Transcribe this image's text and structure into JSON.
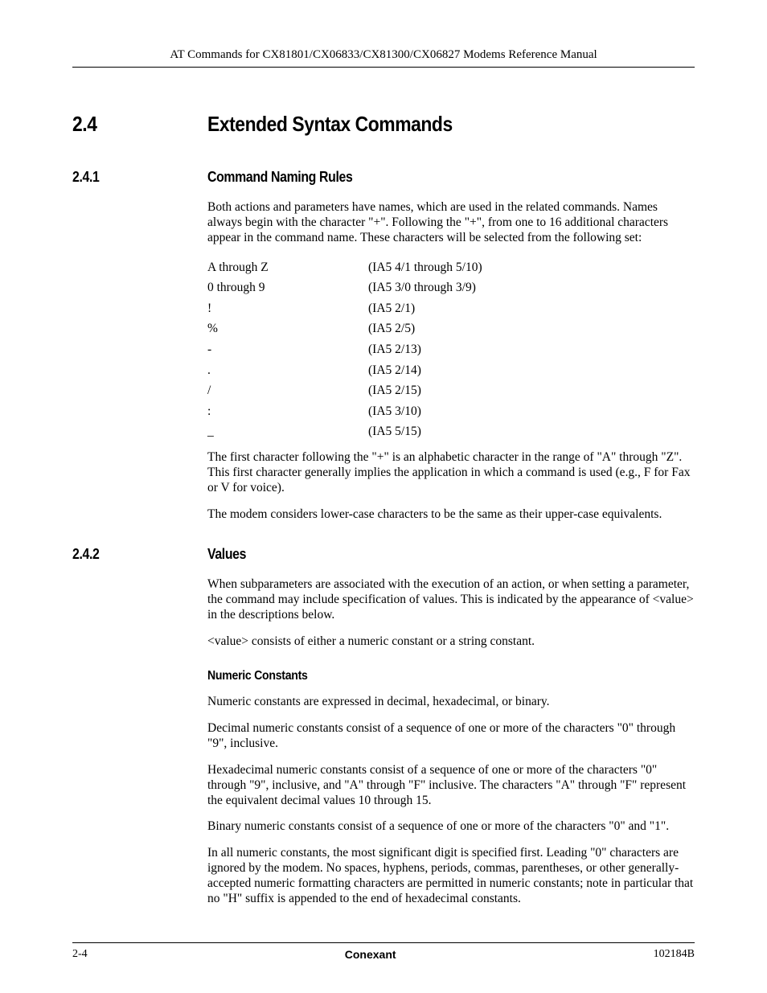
{
  "header": {
    "running_title": "AT Commands for CX81801/CX06833/CX81300/CX06827 Modems Reference Manual"
  },
  "section": {
    "number": "2.4",
    "title": "Extended Syntax Commands"
  },
  "s241": {
    "number": "2.4.1",
    "title": "Command Naming Rules",
    "p1": "Both actions and parameters have names, which are used in the related commands. Names always begin with the character \"+\". Following the \"+\", from one to 16 additional characters appear in the command name. These characters will be selected from the following set:",
    "rows": [
      {
        "c1": "A through Z",
        "c2": "(IA5 4/1 through 5/10)"
      },
      {
        "c1": "0 through 9",
        "c2": "(IA5 3/0 through 3/9)"
      },
      {
        "c1": "!",
        "c2": "(IA5 2/1)"
      },
      {
        "c1": "%",
        "c2": "(IA5 2/5)"
      },
      {
        "c1": "-",
        "c2": "(IA5 2/13)"
      },
      {
        "c1": ".",
        "c2": "(IA5 2/14)"
      },
      {
        "c1": "/",
        "c2": "(IA5 2/15)"
      },
      {
        "c1": ":",
        "c2": "(IA5 3/10)"
      },
      {
        "c1": "_",
        "c2": "(IA5 5/15)"
      }
    ],
    "p2": "The first character following the \"+\" is an alphabetic character in the range of \"A\" through \"Z\". This first character generally implies the application in which a command is used (e.g., F for Fax or V for voice).",
    "p3": "The modem considers lower-case characters to be the same as their upper-case equivalents."
  },
  "s242": {
    "number": "2.4.2",
    "title": "Values",
    "p1": "When subparameters are associated with the execution of an action, or when setting a parameter, the command may include specification of values. This is indicated by the appearance of <value> in the descriptions below.",
    "p2": "<value> consists of either a numeric constant or a string constant.",
    "sub1": {
      "title": "Numeric Constants",
      "p1": "Numeric constants are expressed in decimal, hexadecimal, or binary.",
      "p2": "Decimal numeric constants consist of a sequence of one or more of the characters \"0\" through \"9\", inclusive.",
      "p3": "Hexadecimal numeric constants consist of a sequence of one or more of the characters \"0\" through \"9\", inclusive, and \"A\" through \"F\" inclusive. The characters \"A\" through \"F\" represent the equivalent decimal values 10 through 15.",
      "p4": "Binary numeric constants consist of a sequence of one or more of the characters \"0\" and \"1\".",
      "p5": "In all numeric constants, the most significant digit is specified first. Leading \"0\" characters are ignored by the modem. No spaces, hyphens, periods, commas, parentheses, or other generally-accepted numeric formatting characters are permitted in numeric constants; note in particular that no \"H\" suffix is appended to the end of hexadecimal constants."
    }
  },
  "footer": {
    "left": "2-4",
    "center": "Conexant",
    "right": "102184B"
  }
}
